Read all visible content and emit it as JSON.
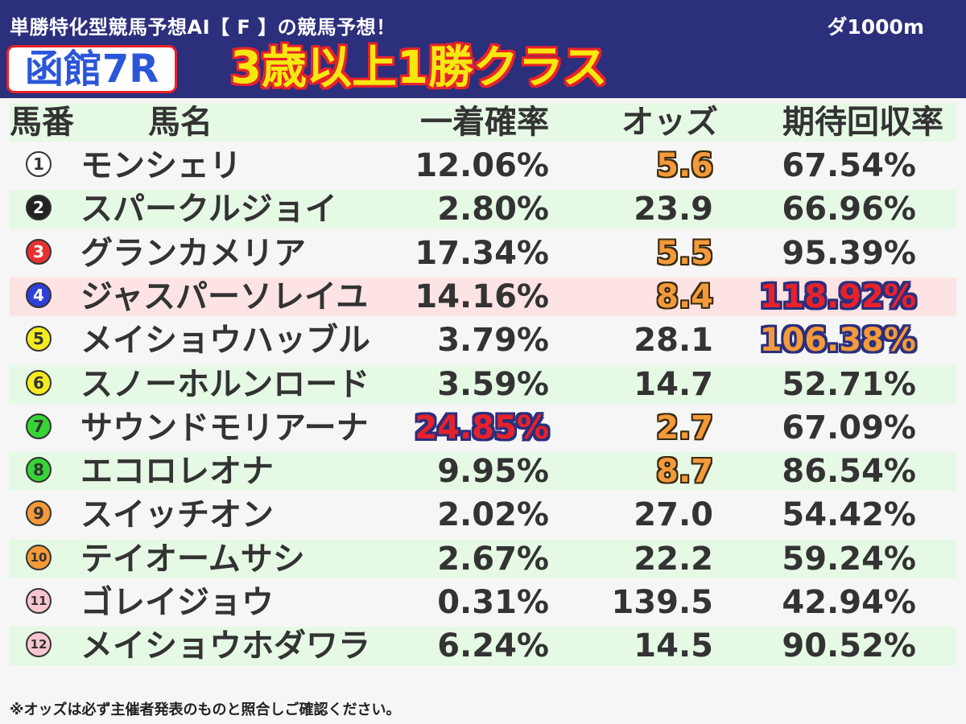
{
  "header": {
    "subtitle": "単勝特化型競馬予想AI【 F 】の競馬予想！",
    "distance": "ダ1000m",
    "venue_race": "函館7R",
    "race_class": "3歳以上1勝クラス"
  },
  "table": {
    "columns": [
      "馬番",
      "馬名",
      "一着確率",
      "オッズ",
      "期待回収率"
    ],
    "rows": [
      {
        "no": "1",
        "name": "モンシェリ",
        "prob": "12.06%",
        "odds": "5.6",
        "roi": "67.54%",
        "badge_bg": "#ffffff",
        "badge_fg": "#333333",
        "odds_hl": true,
        "roi_hl": "",
        "prob_hl": false,
        "row_hl": false
      },
      {
        "no": "2",
        "name": "スパークルジョイ",
        "prob": "2.80%",
        "odds": "23.9",
        "roi": "66.96%",
        "badge_bg": "#222222",
        "badge_fg": "#ffffff",
        "odds_hl": false,
        "roi_hl": "",
        "prob_hl": false,
        "row_hl": false
      },
      {
        "no": "3",
        "name": "グランカメリア",
        "prob": "17.34%",
        "odds": "5.5",
        "roi": "95.39%",
        "badge_bg": "#e8322f",
        "badge_fg": "#ffffff",
        "odds_hl": true,
        "roi_hl": "",
        "prob_hl": false,
        "row_hl": false
      },
      {
        "no": "4",
        "name": "ジャスパーソレイユ",
        "prob": "14.16%",
        "odds": "8.4",
        "roi": "118.92%",
        "badge_bg": "#2f3fd8",
        "badge_fg": "#ffffff",
        "odds_hl": true,
        "roi_hl": "red",
        "prob_hl": false,
        "row_hl": true
      },
      {
        "no": "5",
        "name": "メイショウハッブル",
        "prob": "3.79%",
        "odds": "28.1",
        "roi": "106.38%",
        "badge_bg": "#f5ea20",
        "badge_fg": "#333333",
        "odds_hl": false,
        "roi_hl": "orange",
        "prob_hl": false,
        "row_hl": false
      },
      {
        "no": "6",
        "name": "スノーホルンロード",
        "prob": "3.59%",
        "odds": "14.7",
        "roi": "52.71%",
        "badge_bg": "#f5ea20",
        "badge_fg": "#333333",
        "odds_hl": false,
        "roi_hl": "",
        "prob_hl": false,
        "row_hl": false
      },
      {
        "no": "7",
        "name": "サウンドモリアーナ",
        "prob": "24.85%",
        "odds": "2.7",
        "roi": "67.09%",
        "badge_bg": "#36d436",
        "badge_fg": "#333333",
        "odds_hl": true,
        "roi_hl": "",
        "prob_hl": true,
        "row_hl": false
      },
      {
        "no": "8",
        "name": "エコロレオナ",
        "prob": "9.95%",
        "odds": "8.7",
        "roi": "86.54%",
        "badge_bg": "#36d436",
        "badge_fg": "#333333",
        "odds_hl": true,
        "roi_hl": "",
        "prob_hl": false,
        "row_hl": false
      },
      {
        "no": "9",
        "name": "スイッチオン",
        "prob": "2.02%",
        "odds": "27.0",
        "roi": "54.42%",
        "badge_bg": "#f59a38",
        "badge_fg": "#333333",
        "odds_hl": false,
        "roi_hl": "",
        "prob_hl": false,
        "row_hl": false
      },
      {
        "no": "10",
        "name": "テイオームサシ",
        "prob": "2.67%",
        "odds": "22.2",
        "roi": "59.24%",
        "badge_bg": "#f59a38",
        "badge_fg": "#333333",
        "odds_hl": false,
        "roi_hl": "",
        "prob_hl": false,
        "row_hl": false
      },
      {
        "no": "11",
        "name": "ゴレイジョウ",
        "prob": "0.31%",
        "odds": "139.5",
        "roi": "42.94%",
        "badge_bg": "#f8c6cf",
        "badge_fg": "#333333",
        "odds_hl": false,
        "roi_hl": "",
        "prob_hl": false,
        "row_hl": false
      },
      {
        "no": "12",
        "name": "メイショウホダワラ",
        "prob": "6.24%",
        "odds": "14.5",
        "roi": "90.52%",
        "badge_bg": "#f8c6cf",
        "badge_fg": "#333333",
        "odds_hl": false,
        "roi_hl": "",
        "prob_hl": false,
        "row_hl": false
      }
    ]
  },
  "footer": {
    "note": "※オッズは必ず主催者発表のものと照合しご確認ください。"
  }
}
